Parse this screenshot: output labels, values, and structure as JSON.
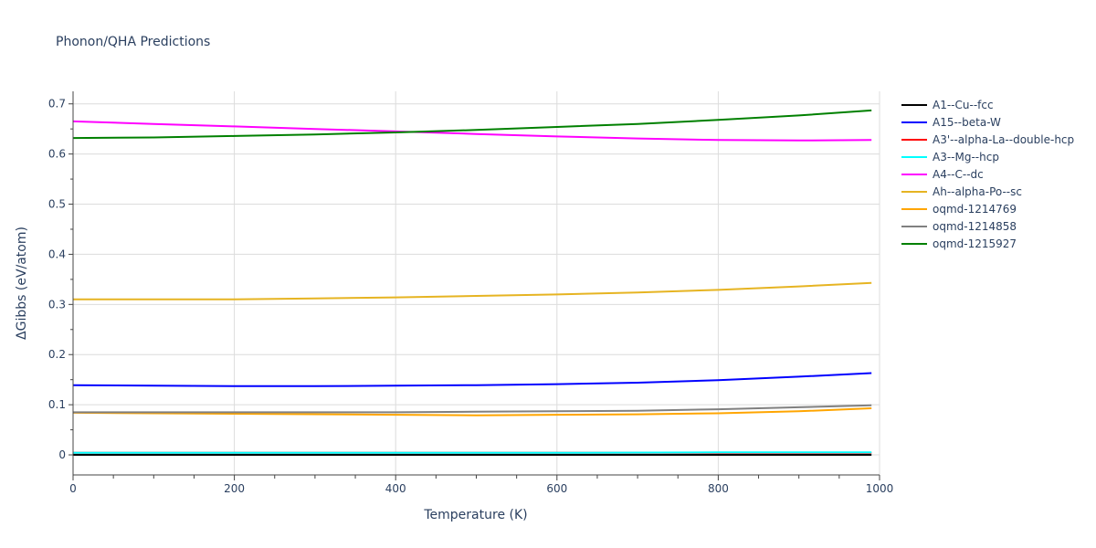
{
  "chart_data": {
    "type": "line",
    "title": "Phonon/QHA Predictions",
    "xlabel": "Temperature (K)",
    "ylabel": "ΔGibbs (eV/atom)",
    "xlim": [
      0,
      1000
    ],
    "ylim": [
      -0.04,
      0.725
    ],
    "x_ticks": [
      0,
      200,
      400,
      600,
      800,
      1000
    ],
    "y_ticks": [
      0,
      0.1,
      0.2,
      0.3,
      0.4,
      0.5,
      0.6,
      0.7
    ],
    "x_tick_labels": [
      "0",
      "200",
      "400",
      "600",
      "800",
      "1000"
    ],
    "y_tick_labels": [
      "0",
      "0.1",
      "0.2",
      "0.3",
      "0.4",
      "0.5",
      "0.6",
      "0.7"
    ],
    "grid": true,
    "legend_position": "right",
    "series": [
      {
        "name": "A1--Cu--fcc",
        "color": "#000000",
        "x": [
          0,
          200,
          400,
          600,
          800,
          990
        ],
        "y": [
          0,
          0,
          0,
          0,
          0,
          0
        ]
      },
      {
        "name": "A15--beta-W",
        "color": "#0000ff",
        "x": [
          0,
          100,
          200,
          300,
          400,
          500,
          600,
          700,
          800,
          900,
          990
        ],
        "y": [
          0.139,
          0.138,
          0.137,
          0.137,
          0.138,
          0.139,
          0.141,
          0.144,
          0.149,
          0.156,
          0.163
        ]
      },
      {
        "name": "A3'--alpha-La--double-hcp",
        "color": "#ff0000",
        "x": [
          0,
          200,
          400,
          600,
          800,
          990
        ],
        "y": [
          0.004,
          0.004,
          0.004,
          0.004,
          0.004,
          0.004
        ]
      },
      {
        "name": "A3--Mg--hcp",
        "color": "#00ffff",
        "x": [
          0,
          200,
          400,
          600,
          800,
          990
        ],
        "y": [
          0.004,
          0.004,
          0.004,
          0.004,
          0.005,
          0.005
        ]
      },
      {
        "name": "A4--C--dc",
        "color": "#ff00ff",
        "x": [
          0,
          100,
          200,
          300,
          400,
          500,
          600,
          700,
          800,
          900,
          990
        ],
        "y": [
          0.665,
          0.66,
          0.655,
          0.65,
          0.645,
          0.64,
          0.635,
          0.631,
          0.628,
          0.627,
          0.628
        ]
      },
      {
        "name": "Ah--alpha-Po--sc",
        "color": "#e6b422",
        "x": [
          0,
          100,
          200,
          300,
          400,
          500,
          600,
          700,
          800,
          900,
          990
        ],
        "y": [
          0.31,
          0.31,
          0.31,
          0.312,
          0.314,
          0.317,
          0.32,
          0.324,
          0.329,
          0.336,
          0.343
        ]
      },
      {
        "name": "oqmd-1214769",
        "color": "#ffa500",
        "x": [
          0,
          200,
          400,
          500,
          600,
          700,
          800,
          900,
          990
        ],
        "y": [
          0.084,
          0.082,
          0.08,
          0.079,
          0.08,
          0.081,
          0.083,
          0.087,
          0.093
        ]
      },
      {
        "name": "oqmd-1214858",
        "color": "#808080",
        "x": [
          0,
          200,
          400,
          500,
          600,
          700,
          800,
          900,
          990
        ],
        "y": [
          0.085,
          0.085,
          0.085,
          0.086,
          0.087,
          0.088,
          0.091,
          0.095,
          0.099
        ]
      },
      {
        "name": "oqmd-1215927",
        "color": "#008000",
        "x": [
          0,
          100,
          200,
          300,
          400,
          500,
          600,
          700,
          800,
          900,
          990
        ],
        "y": [
          0.632,
          0.633,
          0.636,
          0.639,
          0.643,
          0.648,
          0.654,
          0.66,
          0.668,
          0.677,
          0.687
        ]
      }
    ]
  }
}
